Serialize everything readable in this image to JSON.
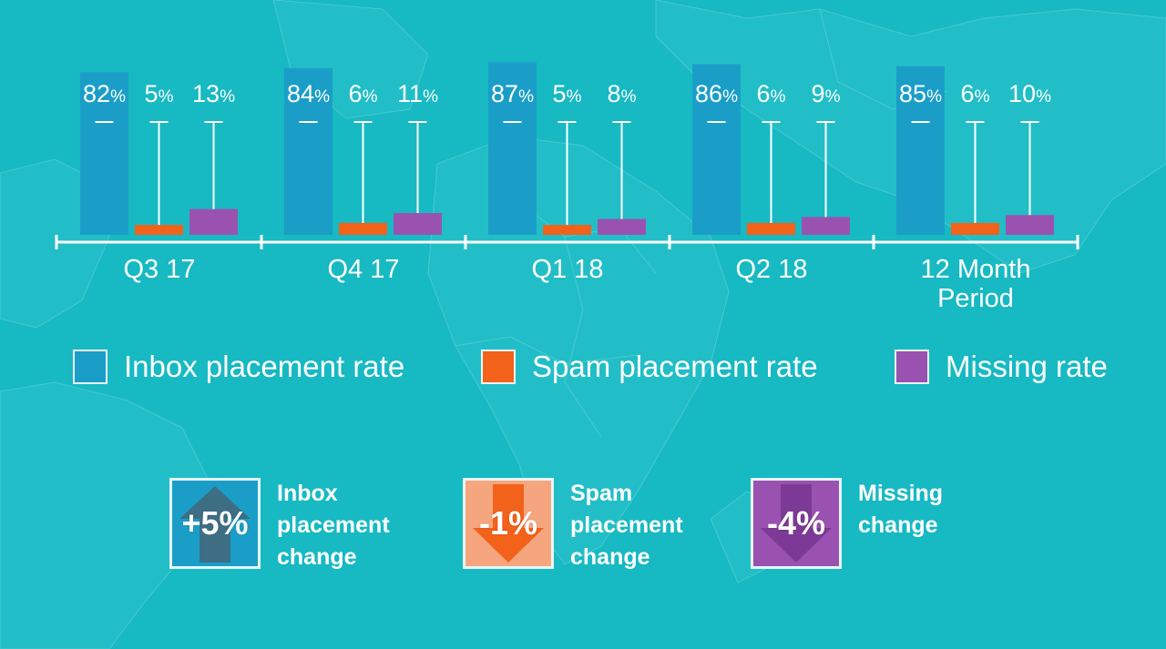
{
  "chart_data": {
    "type": "bar",
    "categories": [
      "Q3 17",
      "Q4 17",
      "Q1 18",
      "Q2 18",
      "12 Month Period"
    ],
    "category_lines": [
      [
        "Q3 17"
      ],
      [
        "Q4 17"
      ],
      [
        "Q1 18"
      ],
      [
        "Q2 18"
      ],
      [
        "12 Month",
        "Period"
      ]
    ],
    "series": [
      {
        "name": "Inbox placement rate",
        "values": [
          82,
          84,
          87,
          86,
          85
        ],
        "color": "#1a9ec8"
      },
      {
        "name": "Spam placement rate",
        "values": [
          5,
          6,
          5,
          6,
          6
        ],
        "color": "#f2621a"
      },
      {
        "name": "Missing rate",
        "values": [
          13,
          11,
          8,
          9,
          10
        ],
        "color": "#9a52b0"
      }
    ],
    "value_suffix": "%",
    "ylim": [
      0,
      100
    ],
    "title": "",
    "xlabel": "",
    "ylabel": ""
  },
  "changes": [
    {
      "value": "+5%",
      "label": "Inbox\nplacement\nchange",
      "direction": "up",
      "color": "#1a9ec8",
      "arrow_color": "#3d6e84"
    },
    {
      "value": "-1%",
      "label": "Spam\nplacement\nchange",
      "direction": "down",
      "color": "#f6a67f",
      "arrow_color": "#f2621a"
    },
    {
      "value": "-4%",
      "label": "Missing\nchange",
      "direction": "down",
      "color": "#9a52b0",
      "arrow_color": "#7c3a96"
    }
  ],
  "colors": {
    "background": "#17b9c3",
    "axis": "#ffffff",
    "map_land": "#2cc4cd"
  }
}
